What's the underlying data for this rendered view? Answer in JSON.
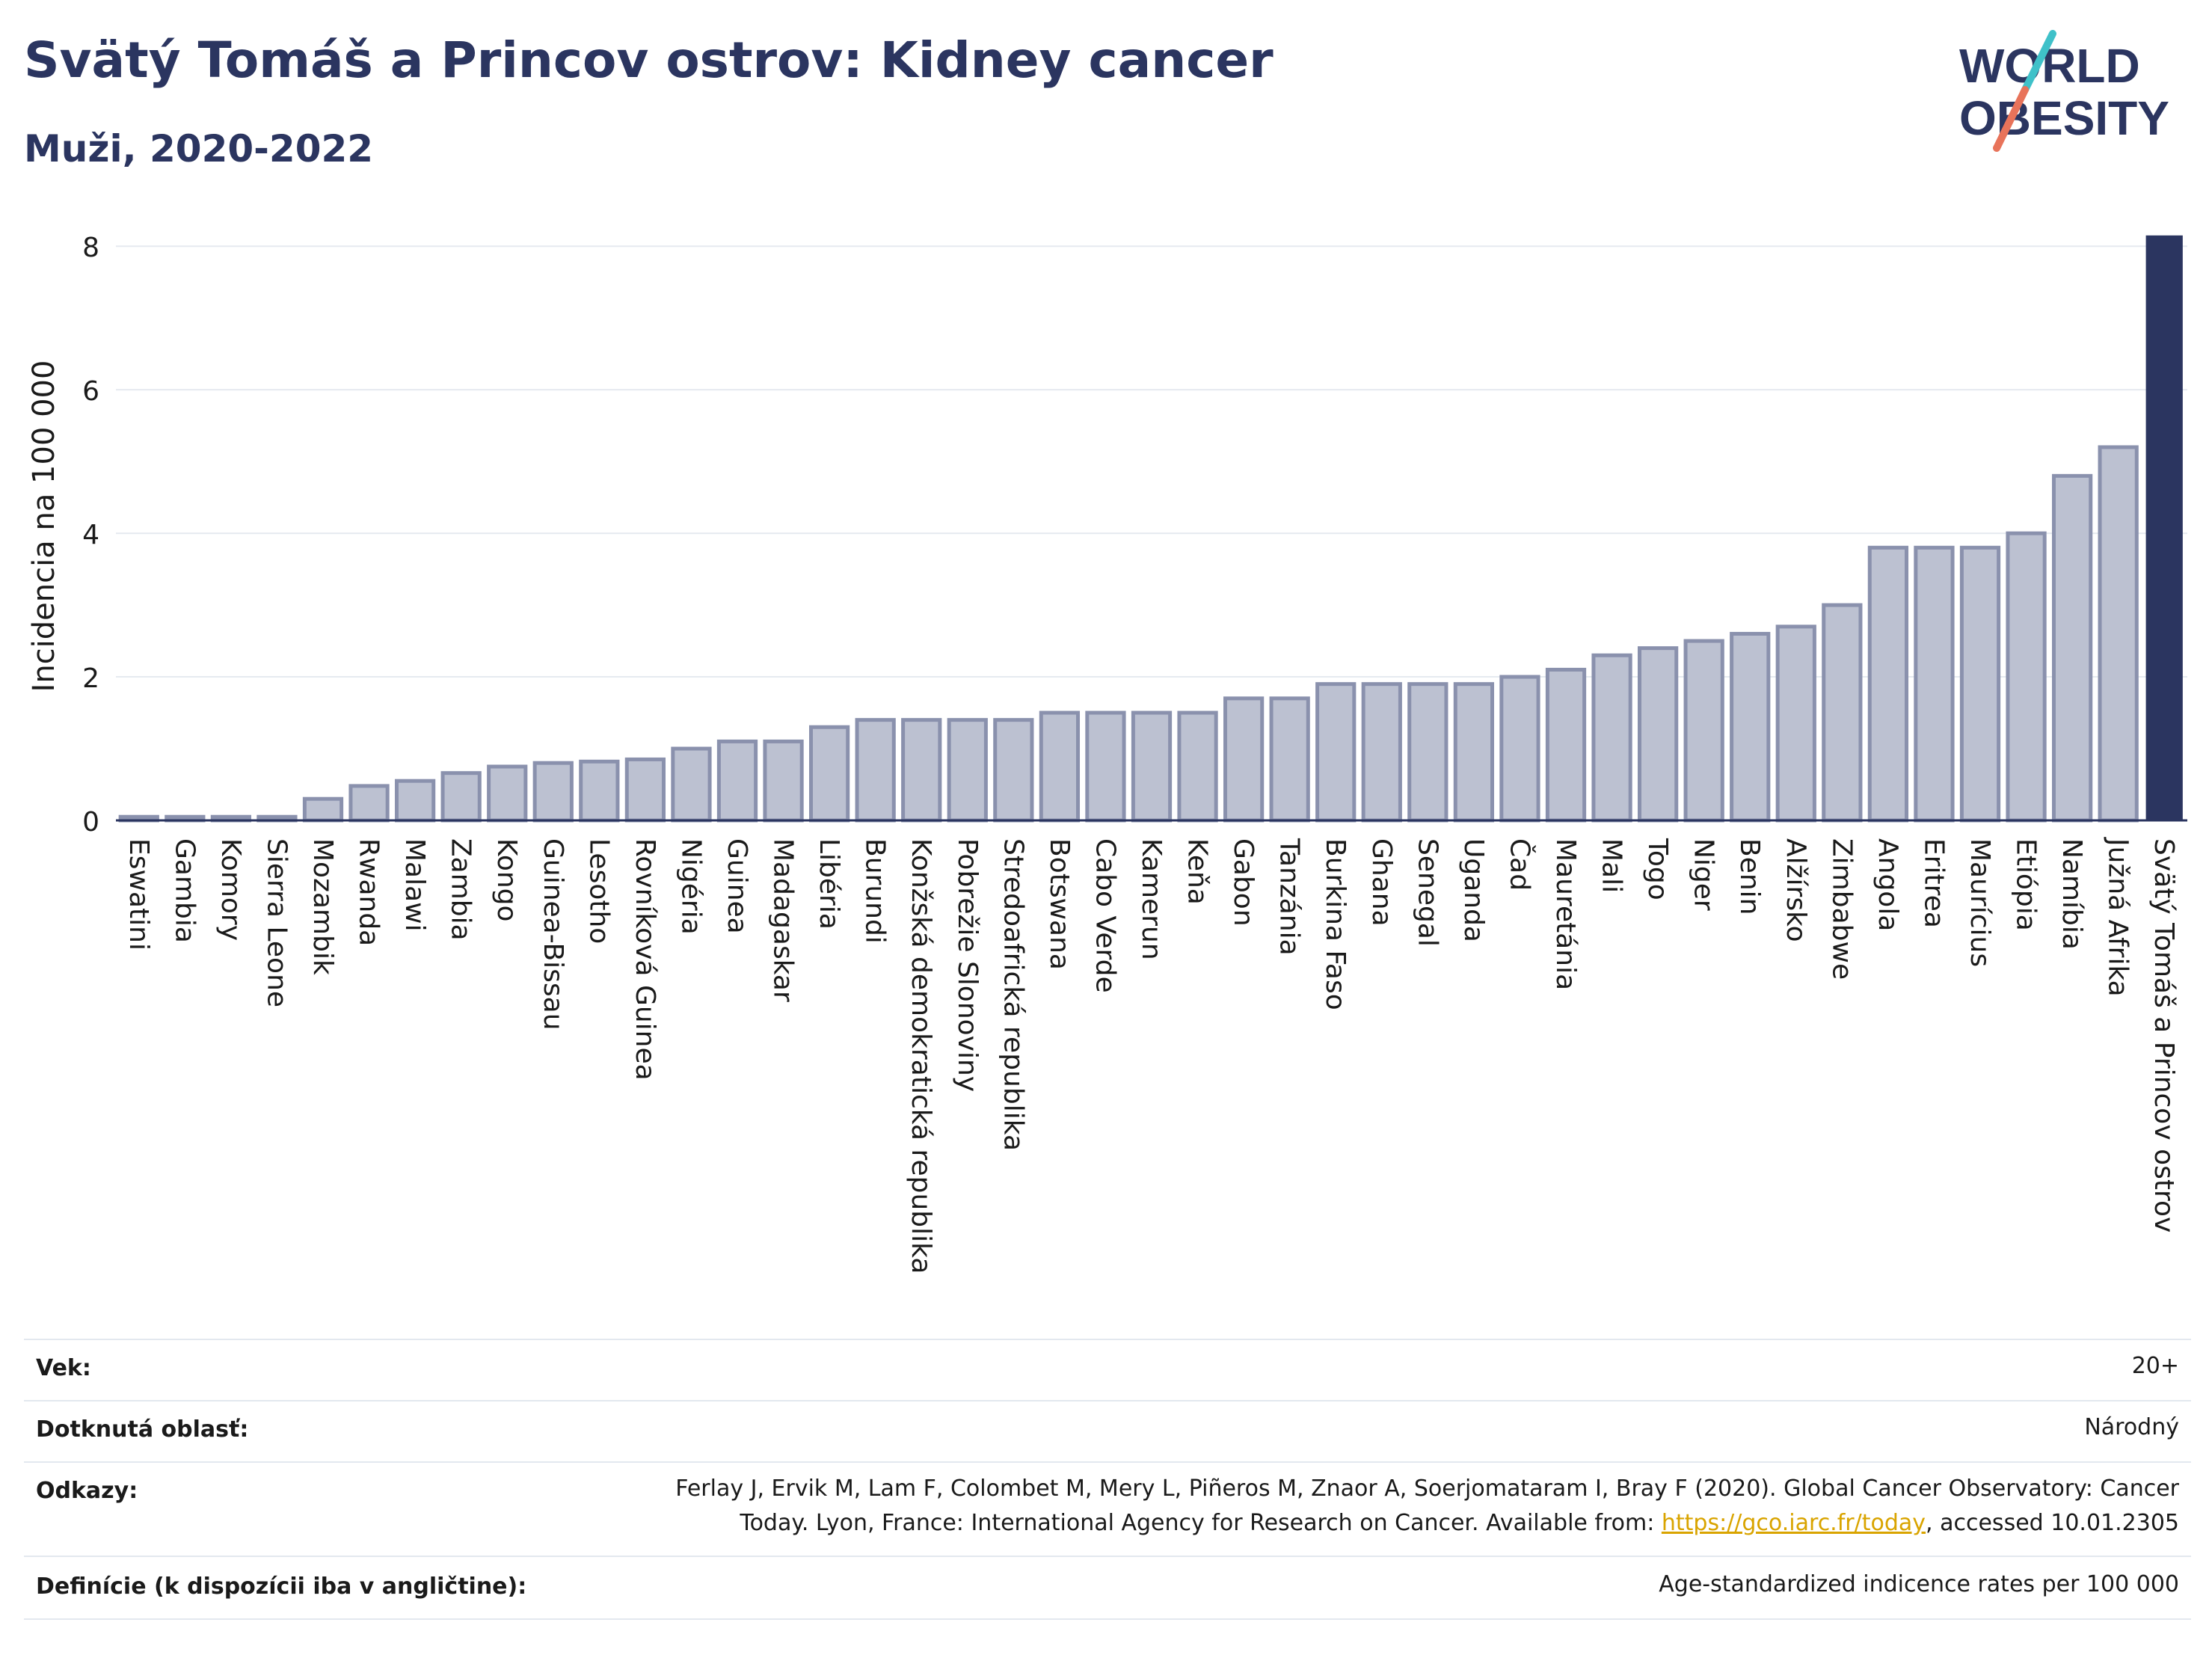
{
  "header": {
    "title": "Svätý Tomáš a Princov ostrov: Kidney cancer",
    "subtitle": "Muži, 2020-2022"
  },
  "logo": {
    "line1": "WORLD",
    "line2": "OBESITY",
    "accent_teal": "#3fc1c9",
    "accent_red": "#e8735a",
    "text_color": "#2b3560"
  },
  "colors": {
    "bar_fill": "#bcc1d1",
    "bar_stroke": "#8a91ad",
    "highlight": "#2b3560",
    "grid": "#e6eaf0"
  },
  "chart_data": {
    "type": "bar",
    "ylabel": "Incidencia na 100 000",
    "xlabel": "",
    "ylim": [
      0,
      8.2
    ],
    "yticks": [
      0,
      2,
      4,
      6,
      8
    ],
    "grid": true,
    "highlight_category": "Svätý Tomáš a Princov ostrov",
    "categories": [
      "Eswatini",
      "Gambia",
      "Komory",
      "Sierra Leone",
      "Mozambik",
      "Rwanda",
      "Malawi",
      "Zambia",
      "Kongo",
      "Guinea-Bissau",
      "Lesotho",
      "Rovníková Guinea",
      "Nigéria",
      "Guinea",
      "Madagaskar",
      "Libéria",
      "Burundi",
      "Konžská demokratická republika",
      "Pobrežie Slonoviny",
      "Stredoafrická republika",
      "Botswana",
      "Cabo Verde",
      "Kamerun",
      "Keňa",
      "Gabon",
      "Tanzánia",
      "Burkina Faso",
      "Ghana",
      "Senegal",
      "Uganda",
      "Čad",
      "Mauretánia",
      "Mali",
      "Togo",
      "Niger",
      "Benin",
      "Alžírsko",
      "Zimbabwe",
      "Angola",
      "Eritrea",
      "Maurícius",
      "Etiópia",
      "Namíbia",
      "Južná Afrika",
      "Svätý Tomáš a Princov ostrov"
    ],
    "values": [
      0.05,
      0.05,
      0.05,
      0.05,
      0.3,
      0.48,
      0.55,
      0.66,
      0.75,
      0.8,
      0.82,
      0.85,
      1.0,
      1.1,
      1.1,
      1.3,
      1.4,
      1.4,
      1.4,
      1.4,
      1.5,
      1.5,
      1.5,
      1.5,
      1.7,
      1.7,
      1.9,
      1.9,
      1.9,
      1.9,
      2.0,
      2.1,
      2.3,
      2.4,
      2.5,
      2.6,
      2.7,
      3.0,
      3.8,
      3.8,
      3.8,
      4.0,
      4.8,
      5.2,
      8.15
    ]
  },
  "footer": {
    "age": {
      "label": "Vek:",
      "value": "20+"
    },
    "area": {
      "label": "Dotknutá oblasť:",
      "value": "Národný"
    },
    "refs": {
      "label": "Odkazy:",
      "line1": "Ferlay J, Ervik M, Lam F, Colombet M, Mery L, Piñeros M, Znaor A, Soerjomataram I, Bray F (2020). Global Cancer Observatory: Cancer",
      "line2_pre": "Today. Lyon, France: International Agency for Research on Cancer. Available from: ",
      "link": "https://gco.iarc.fr/today",
      "line2_post": ", accessed 10.01.2305"
    },
    "defs": {
      "label": "Definície (k dispozícii iba v angličtine):",
      "value": "Age-standardized indicence rates per 100 000"
    }
  }
}
